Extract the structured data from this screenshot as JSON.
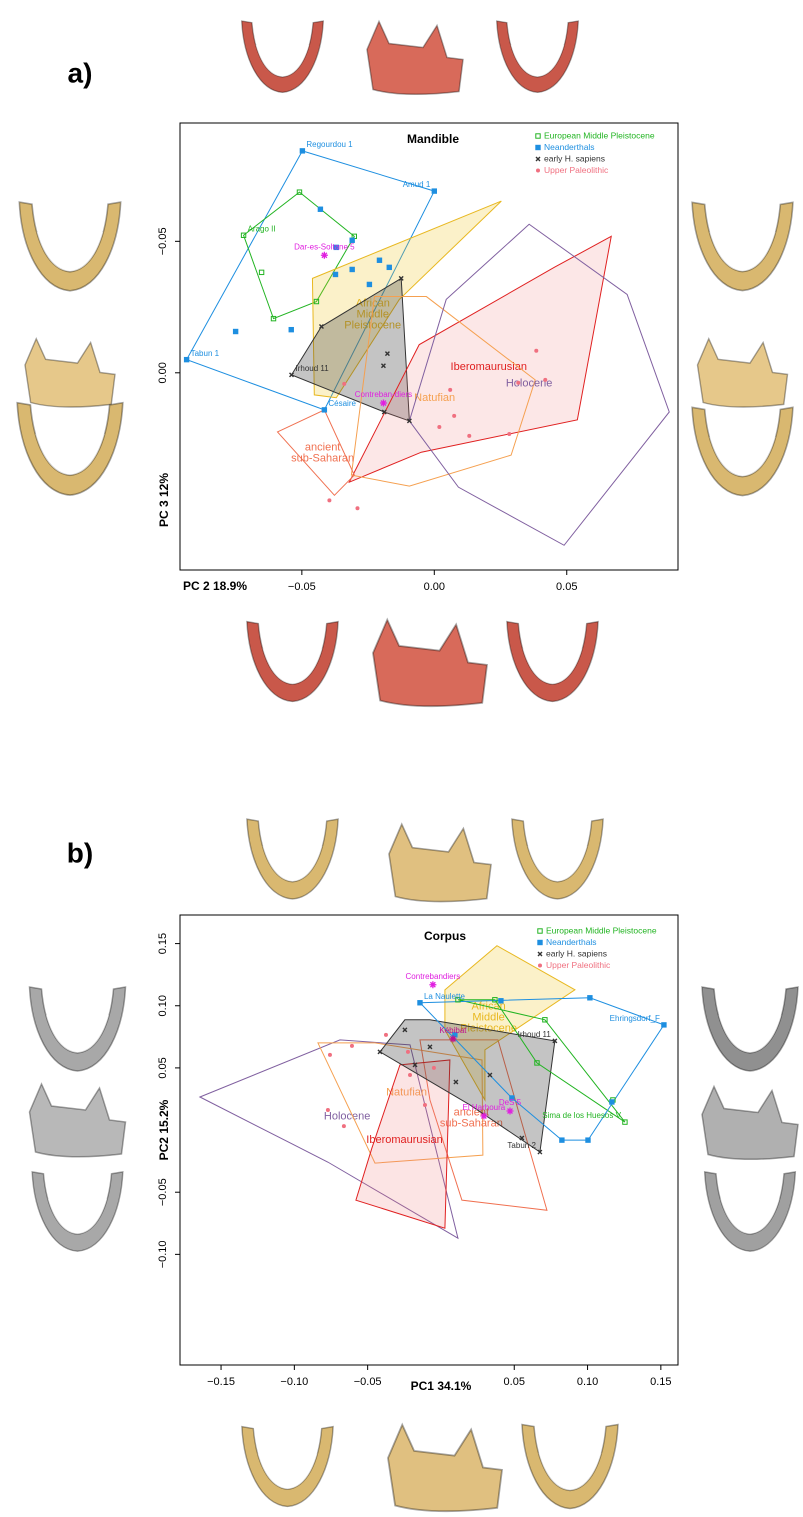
{
  "chart_data": [
    {
      "type": "scatter",
      "panel_label": "a)",
      "title": "Mandible",
      "xlabel": "PC 2 18.9%",
      "ylabel": "PC 3 12%",
      "xlim": [
        -0.096,
        0.092
      ],
      "ylim": [
        0.075,
        -0.095
      ],
      "xticks": [
        {
          "value": -0.05,
          "label": "−0.05"
        },
        {
          "value": 0,
          "label": "0.00"
        },
        0.05
      ],
      "yticks": [
        {
          "value": -0.05,
          "label": "−0.05"
        },
        {
          "value": 0,
          "label": "0.00"
        }
      ],
      "series": [
        {
          "name": "European Middle Pleistocene",
          "color": "#22b422",
          "marker": "open-square",
          "x": [
            -0.072,
            -0.0607,
            -0.0509,
            -0.0302,
            -0.0445,
            -0.0652
          ],
          "y": [
            -0.0523,
            -0.0206,
            -0.0687,
            -0.0519,
            -0.0271,
            -0.0382
          ],
          "labels": [
            "Arago II",
            null,
            null,
            null,
            null,
            null
          ]
        },
        {
          "name": "Neanderthals",
          "color": "#1e8fe0",
          "marker": "square",
          "x": [
            -0.0498,
            0,
            -0.043,
            -0.037,
            -0.031,
            -0.0207,
            -0.017,
            -0.031,
            -0.0245,
            -0.0373,
            -0.054,
            -0.075,
            -0.0935,
            -0.0415
          ],
          "y": [
            -0.0844,
            -0.0691,
            -0.0622,
            -0.0477,
            -0.0504,
            -0.0428,
            -0.0401,
            -0.0393,
            -0.0336,
            -0.0374,
            -0.0164,
            -0.0157,
            -0.005,
            0.0141
          ],
          "labels": [
            "Regourdou 1",
            "Amud 1",
            null,
            null,
            null,
            null,
            null,
            null,
            null,
            null,
            null,
            null,
            "Tabun 1",
            "Césaire"
          ]
        },
        {
          "name": "early H. sapiens",
          "color": "#333333",
          "marker": "cross",
          "x": [
            -0.0539,
            -0.0426,
            -0.0125,
            -0.0189,
            -0.0094,
            -0.0177,
            -0.0192
          ],
          "y": [
            0.0008,
            -0.0176,
            -0.0359,
            0.0149,
            0.0183,
            -0.0073,
            -0.0027
          ],
          "labels": [
            "Irhoud 11",
            null,
            null,
            null,
            null,
            null,
            null
          ]
        },
        {
          "name": "Upper Paleolithic",
          "color": "#f07080",
          "marker": "circle",
          "x": [
            -0.034,
            -0.0396,
            -0.029,
            0.006,
            0.0075,
            0.0019,
            0.0132,
            0.0283,
            0.0317,
            0.0419,
            0.0385
          ],
          "y": [
            0.0042,
            0.0485,
            0.0515,
            0.0065,
            0.0164,
            0.0206,
            0.024,
            0.0233,
            0.0038,
            0.0027,
            -0.0084
          ],
          "labels": [
            null,
            null,
            null,
            null,
            null,
            null,
            null,
            null,
            null,
            null,
            null
          ]
        }
      ],
      "specimens": [
        {
          "name": "Dar-es-Soltane 5",
          "color": "#e020e0",
          "x": -0.0415,
          "y": -0.0447
        },
        {
          "name": "Contreban-diers",
          "color": "#e020e0",
          "x": -0.0192,
          "y": 0.0115
        }
      ],
      "hulls": [
        {
          "color": "#1e8fe0",
          "fill": "none",
          "x": [
            -0.0498,
            0,
            -0.0415,
            -0.0935
          ],
          "y": [
            -0.0844,
            -0.0691,
            0.0141,
            -0.005
          ]
        },
        {
          "color": "#22b422",
          "fill": "none",
          "x": [
            -0.0509,
            -0.0302,
            -0.0445,
            -0.0607,
            -0.072
          ],
          "y": [
            -0.0687,
            -0.0519,
            -0.0271,
            -0.0206,
            -0.0523
          ]
        },
        {
          "label": "African Middle Pleistocene",
          "color": "#e8b820",
          "fill": "rgba(240,200,40,0.25)",
          "x": [
            -0.046,
            0.0253,
            -0.0132,
            -0.037,
            -0.0453
          ],
          "y": [
            -0.0359,
            -0.0653,
            -0.0279,
            0.0095,
            0.0084
          ]
        },
        {
          "color": "#333333",
          "fill": "rgba(60,60,60,0.3)",
          "x": [
            -0.0539,
            -0.0426,
            -0.0125,
            -0.0094,
            -0.0189
          ],
          "y": [
            0.0008,
            -0.0176,
            -0.0359,
            0.0183,
            0.0149
          ]
        },
        {
          "label": "Iberomaurusian",
          "color": "#e02020",
          "fill": "rgba(240,120,120,0.18)",
          "x": [
            0.0668,
            0.054,
            -0.0049,
            -0.0321,
            -0.0057,
            0.0453
          ],
          "y": [
            -0.0519,
            0.0179,
            0.0302,
            0.0416,
            -0.0107,
            -0.0401
          ]
        },
        {
          "label": "Natufian",
          "color": "#f5a050",
          "fill": "none",
          "x": [
            -0.0226,
            -0.003,
            0.0381,
            0.029,
            -0.0094,
            -0.0313
          ],
          "y": [
            -0.029,
            -0.029,
            0.0027,
            0.0313,
            0.0431,
            0.0389
          ]
        },
        {
          "label": "ancient sub-Saharan",
          "color": "#f07050",
          "fill": "none",
          "x": [
            -0.0592,
            -0.0415,
            -0.0302,
            -0.0377
          ],
          "y": [
            0.0225,
            0.0141,
            0.0389,
            0.0466
          ]
        },
        {
          "label": "Holocene",
          "color": "#8060a0",
          "fill": "none",
          "x": [
            -0.0094,
            0.0091,
            0.049,
            0.0887,
            0.0728,
            0.0358,
            0.0045
          ],
          "y": [
            0.0183,
            0.0435,
            0.0656,
            0.0149,
            -0.0298,
            -0.0565,
            -0.0279
          ]
        }
      ]
    },
    {
      "type": "scatter",
      "panel_label": "b)",
      "title": "Corpus",
      "xlabel": "PC1 34.1%",
      "ylabel": "PC2 15.2%",
      "xlim": [
        -0.178,
        0.1617
      ],
      "ylim": [
        -0.189,
        0.173
      ],
      "xticks": [
        {
          "value": -0.15,
          "label": "−0.15"
        },
        {
          "value": -0.1,
          "label": "−0.10"
        },
        {
          "value": -0.05,
          "label": "−0.05"
        },
        0.05,
        {
          "value": 0.1,
          "label": "0.10"
        },
        0.15
      ],
      "yticks": [
        0.15,
        {
          "value": 0.1,
          "label": "0.10"
        },
        0.05,
        {
          "value": -0.05,
          "label": "−0.05"
        },
        {
          "value": -0.1,
          "label": "−0.10"
        }
      ],
      "series": [
        {
          "name": "European Middle Pleistocene",
          "color": "#22b422",
          "marker": "open-square",
          "x": [
            0.0116,
            0.0368,
            0.0709,
            0.0655,
            0.1173,
            0.1255
          ],
          "y": [
            0.1048,
            0.1048,
            0.0887,
            0.054,
            0.0242,
            0.0064
          ],
          "labels": [
            null,
            null,
            null,
            null,
            null,
            "Sima de los Huesos V"
          ]
        },
        {
          "name": "Neanderthals",
          "color": "#1e8fe0",
          "marker": "square",
          "x": [
            -0.0143,
            0.0409,
            0.1016,
            0.1521,
            0.1166,
            0.1003,
            0.0825,
            0.0484,
            0.0095
          ],
          "y": [
            0.1024,
            0.104,
            0.1064,
            0.0846,
            0.0226,
            -0.0081,
            -0.0081,
            0.0258,
            0.0766
          ],
          "labels": [
            "La Naulette",
            null,
            null,
            "Ehringsdorf_F",
            null,
            null,
            null,
            null,
            null
          ]
        },
        {
          "name": "early H. sapiens",
          "color": "#333333",
          "marker": "cross",
          "x": [
            0.0777,
            0.0675,
            -0.0416,
            -0.0246,
            -0.0075,
            -0.0177,
            0.0102,
            0.0334,
            0.0552
          ],
          "y": [
            0.0717,
            -0.0177,
            0.0629,
            0.0806,
            0.0669,
            0.0524,
            0.0387,
            0.0443,
            -0.0064
          ],
          "labels": [
            "Irhoud 11",
            "Tabun 2",
            null,
            null,
            null,
            null,
            null,
            null,
            null
          ]
        },
        {
          "name": "Upper Paleolithic",
          "color": "#f07080",
          "marker": "circle",
          "x": [
            -0.0757,
            -0.0607,
            -0.0771,
            -0.0662,
            -0.0375,
            -0.0225,
            -0.0211,
            -0.0109,
            -0.0048
          ],
          "y": [
            0.0605,
            0.0677,
            0.0161,
            0.0032,
            0.0766,
            0.0629,
            0.0443,
            0.0202,
            0.05
          ],
          "labels": [
            null,
            null,
            null,
            null,
            null,
            null,
            null,
            null,
            null
          ]
        }
      ],
      "specimens": [
        {
          "name": "Contrebandiers",
          "color": "#e020e0",
          "x": -0.0055,
          "y": 0.1169
        },
        {
          "name": "Kébibat",
          "color": "#c0108c",
          "x": 0.0082,
          "y": 0.0733
        },
        {
          "name": "DeS 5",
          "color": "#e020e0",
          "x": 0.0471,
          "y": 0.0153
        },
        {
          "name": "El Harhoura",
          "color": "#e020e0",
          "x": 0.0293,
          "y": 0.0113
        }
      ],
      "hulls": [
        {
          "label": "Holocene",
          "color": "#8060a0",
          "fill": "none",
          "x": [
            -0.1644,
            -0.0689,
            -0.0211,
            0.0116,
            -0.0771
          ],
          "y": [
            0.0266,
            0.0725,
            0.0685,
            -0.087,
            -0.0258
          ]
        },
        {
          "label": "Natufian",
          "color": "#f5a050",
          "fill": "none",
          "x": [
            -0.0839,
            -0.045,
            0.028,
            0.0286,
            -0.045
          ],
          "y": [
            0.0701,
            0.0701,
            0.0564,
            -0.0202,
            -0.0266
          ]
        },
        {
          "label": "ancient sub-Saharan",
          "color": "#f07050",
          "fill": "none",
          "x": [
            -0.0143,
            0.0389,
            0.0723,
            0.0143,
            -0.0075
          ],
          "y": [
            0.0725,
            0.0725,
            -0.0645,
            -0.0564,
            0.0242
          ]
        },
        {
          "label": "Iberomaurusian",
          "color": "#e02020",
          "fill": "rgba(240,120,120,0.2)",
          "x": [
            -0.028,
            0.0061,
            0.0027,
            -0.058,
            -0.0471
          ],
          "y": [
            0.0524,
            0.0564,
            -0.079,
            -0.0564,
            -0.0145
          ]
        },
        {
          "label": "African Middle Pleistocene",
          "color": "#e8b820",
          "fill": "rgba(240,200,40,0.25)",
          "x": [
            0.0027,
            0.0382,
            0.0914,
            0.03,
            0.03,
            0.0027
          ],
          "y": [
            0.1128,
            0.1483,
            0.1128,
            0.0645,
            0.0242,
            0.0806
          ]
        },
        {
          "color": "#333333",
          "fill": "rgba(60,60,60,0.3)",
          "x": [
            -0.0416,
            -0.0246,
            -0.0075,
            0.0777,
            0.0675,
            0.0198
          ],
          "y": [
            0.0629,
            0.0887,
            0.0887,
            0.0717,
            -0.0177,
            0.0202
          ]
        },
        {
          "color": "#22b422",
          "fill": "none",
          "x": [
            0.0116,
            0.0709,
            0.1255,
            0.0655,
            0.0368
          ],
          "y": [
            0.1048,
            0.0887,
            0.0064,
            0.054,
            0.1048
          ]
        },
        {
          "color": "#1e8fe0",
          "fill": "none",
          "x": [
            -0.0143,
            0.1016,
            0.1521,
            0.1003,
            0.0825,
            0.0484
          ],
          "y": [
            0.1024,
            0.1064,
            0.0846,
            -0.0081,
            -0.0081,
            0.0258
          ]
        }
      ]
    }
  ]
}
